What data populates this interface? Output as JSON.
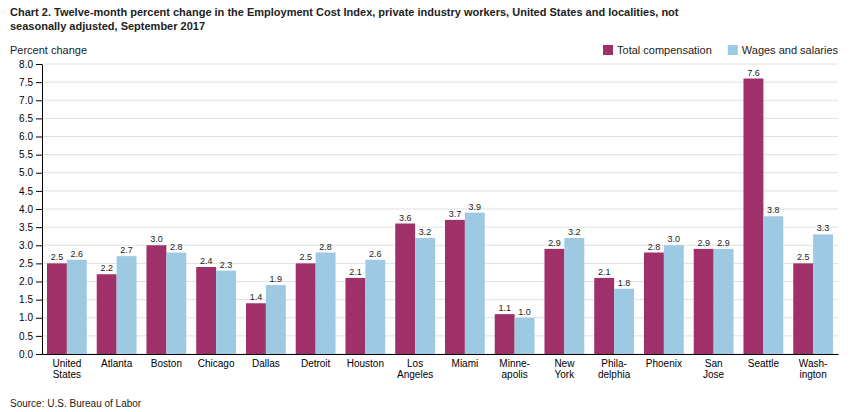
{
  "chart_data": {
    "type": "bar",
    "title": "Chart 2. Twelve-month percent change in the Employment Cost Index, private industry workers, United States and localities, not\nseasonally adjusted, September 2017",
    "ylabel": "Percent change",
    "source": "Source: U.S. Bureau of Labor",
    "categories": [
      "United\nStates",
      "Atlanta",
      "Boston",
      "Chicago",
      "Dallas",
      "Detroit",
      "Houston",
      "Los\nAngeles",
      "Miami",
      "Minne-\napolis",
      "New\nYork",
      "Phila-\ndelphia",
      "Phoenix",
      "San\nJose",
      "Seattle",
      "Wash-\nington"
    ],
    "series": [
      {
        "name": "Total compensation",
        "color": "#A0306A",
        "values": [
          2.5,
          2.2,
          3.0,
          2.4,
          1.4,
          2.5,
          2.1,
          3.6,
          3.7,
          1.1,
          2.9,
          2.1,
          2.8,
          2.9,
          7.6,
          2.5
        ],
        "value_labels": [
          "2.5",
          "2.2",
          "3.0",
          "2.4",
          "1.4",
          "2.5",
          "2.1",
          "3.6",
          "3.7",
          "1.1",
          "2.9",
          "2.1",
          "2.8",
          "2.9",
          "7.6",
          "2.5"
        ]
      },
      {
        "name": "Wages and salaries",
        "color": "#9EC9E2",
        "values": [
          2.6,
          2.7,
          2.8,
          2.3,
          1.9,
          2.8,
          2.6,
          3.2,
          3.9,
          1.0,
          3.2,
          1.8,
          3.0,
          2.9,
          3.8,
          3.3
        ],
        "value_labels": [
          "2.6",
          "2.7",
          "2.8",
          "2.3",
          "1.9",
          "2.8",
          "2.6",
          "3.2",
          "3.9",
          "1.0",
          "3.2",
          "1.8",
          "3.0",
          "2.9",
          "3.8",
          "3.3"
        ]
      }
    ],
    "ylim": [
      0.0,
      8.0
    ],
    "yticks": [
      {
        "value": 0,
        "label": "0.0"
      },
      0.5,
      {
        "value": 1,
        "label": "1.0"
      },
      1.5,
      {
        "value": 2,
        "label": "2.0"
      },
      2.5,
      {
        "value": 3,
        "label": "3.0"
      },
      3.5,
      {
        "value": 4,
        "label": "4.0"
      },
      4.5,
      {
        "value": 5,
        "label": "5.0"
      },
      5.5,
      {
        "value": 6,
        "label": "6.0"
      },
      6.5,
      {
        "value": 7,
        "label": "7.0"
      },
      7.5,
      {
        "value": 8,
        "label": "8.0"
      }
    ],
    "grid": true,
    "legend": "upper right",
    "data_labels": true
  }
}
